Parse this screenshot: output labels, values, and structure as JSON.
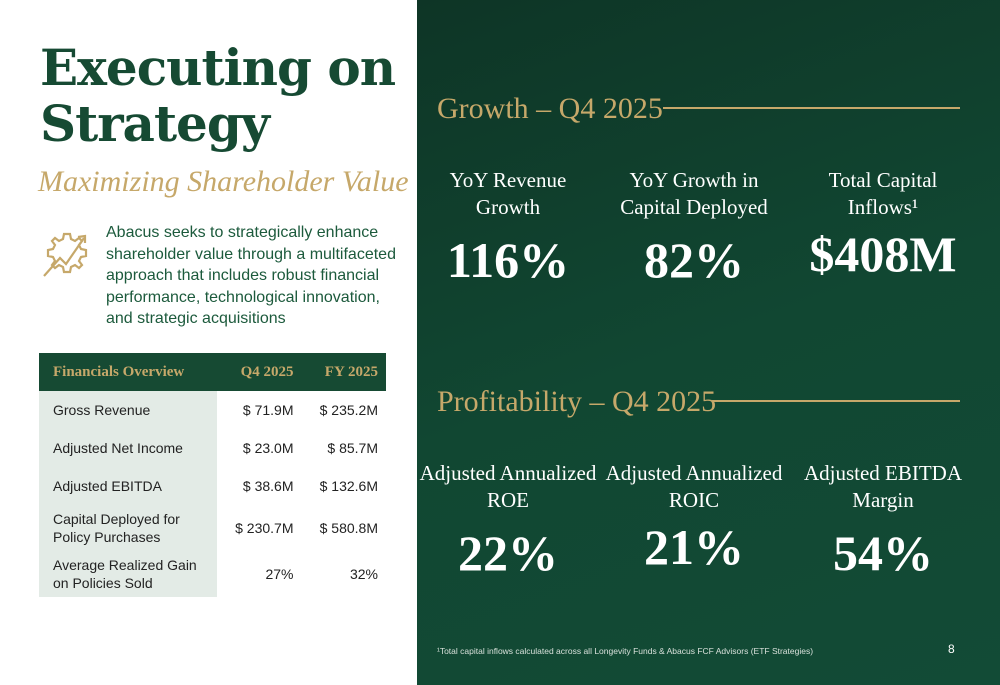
{
  "left": {
    "title_line1": "Executing on",
    "title_line2": "Strategy",
    "subtitle": "Maximizing Shareholder Value",
    "description": "Abacus seeks to strategically enhance shareholder value through a multifaceted approach that includes robust financial performance, technological innovation, and strategic acquisitions",
    "icon": "gear-growth-arrow-icon"
  },
  "table": {
    "headers": [
      "Financials Overview",
      "Q4 2025",
      "FY 2025"
    ],
    "rows": [
      [
        "Gross Revenue",
        "$ 71.9M",
        "$ 235.2M"
      ],
      [
        "Adjusted Net Income",
        "$ 23.0M",
        "$ 85.7M"
      ],
      [
        "Adjusted EBITDA",
        "$ 38.6M",
        "$ 132.6M"
      ],
      [
        "Capital Deployed for Policy Purchases",
        "$ 230.7M",
        "$ 580.8M"
      ],
      [
        "Average Realized Gain on Policies Sold",
        "27%",
        "32%"
      ]
    ]
  },
  "growth": {
    "heading": "Growth – Q4 2025",
    "metrics": [
      {
        "label": "YoY Revenue Growth",
        "value": "116%"
      },
      {
        "label": "YoY Growth in Capital Deployed",
        "value": "82%"
      },
      {
        "label": "Total Capital Inflows¹",
        "value": "$408M"
      }
    ]
  },
  "profitability": {
    "heading": "Profitability – Q4 2025",
    "metrics": [
      {
        "label": "Adjusted Annualized ROE",
        "value": "22%"
      },
      {
        "label": "Adjusted Annualized ROIC",
        "value": "21%"
      },
      {
        "label": "Adjusted EBITDA Margin",
        "value": "54%"
      }
    ]
  },
  "footnote": "¹Total capital inflows calculated across all Longevity Funds & Abacus FCF Advisors (ETF Strategies)",
  "page_number": "8",
  "colors": {
    "brand_green": "#164a33",
    "gold": "#c6a86a"
  }
}
